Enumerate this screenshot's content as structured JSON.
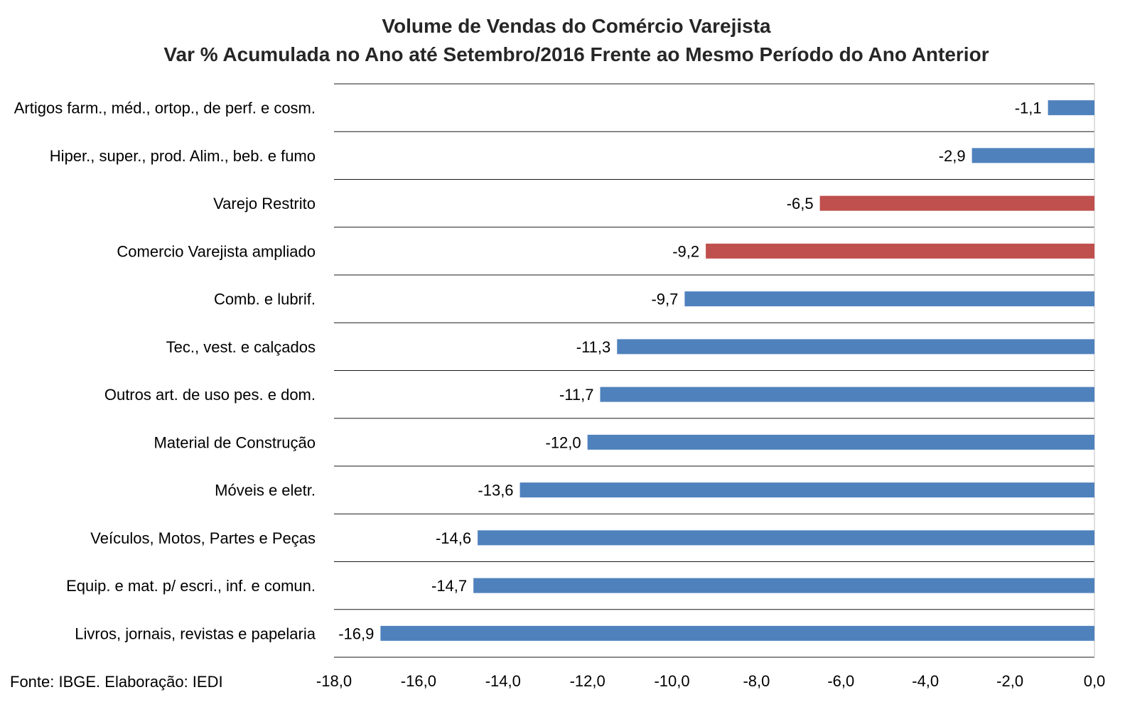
{
  "chart_data": {
    "type": "bar",
    "orientation": "horizontal",
    "title_line1": "Volume de Vendas do Comércio Varejista",
    "title_line2": "Var % Acumulada no Ano até Setembro/2016 Frente ao Mesmo Período do Ano Anterior",
    "xlim": [
      -18.0,
      0.0
    ],
    "ticks": [
      -18.0,
      -16.0,
      -14.0,
      -12.0,
      -10.0,
      -8.0,
      -6.0,
      -4.0,
      -2.0,
      0.0
    ],
    "tick_labels": [
      "-18,0",
      "-16,0",
      "-14,0",
      "-12,0",
      "-10,0",
      "-8,0",
      "-6,0",
      "-4,0",
      "-2,0",
      "0,0"
    ],
    "grid": true,
    "colors": {
      "default": "#4f81bd",
      "highlight": "#c0504d"
    },
    "categories": [
      "Artigos farm., méd., ortop., de perf. e cosm.",
      "Hiper., super., prod. Alim., beb. e fumo",
      "Varejo Restrito",
      "Comercio Varejista ampliado",
      "Comb. e lubrif.",
      "Tec., vest. e calçados",
      "Outros art. de uso pes. e dom.",
      "Material de Construção",
      "Móveis e eletr.",
      "Veículos, Motos, Partes e Peças",
      "Equip. e mat. p/ escri., inf. e comun.",
      "Livros, jornais, revistas e papelaria"
    ],
    "values": [
      -1.1,
      -2.9,
      -6.5,
      -9.2,
      -9.7,
      -11.3,
      -11.7,
      -12.0,
      -13.6,
      -14.6,
      -14.7,
      -16.9
    ],
    "value_labels": [
      "-1,1",
      "-2,9",
      "-6,5",
      "-9,2",
      "-9,7",
      "-11,3",
      "-11,7",
      "-12,0",
      "-13,6",
      "-14,6",
      "-14,7",
      "-16,9"
    ],
    "highlight": [
      false,
      false,
      true,
      true,
      false,
      false,
      false,
      false,
      false,
      false,
      false,
      false
    ]
  },
  "source": "Fonte: IBGE. Elaboração: IEDI"
}
